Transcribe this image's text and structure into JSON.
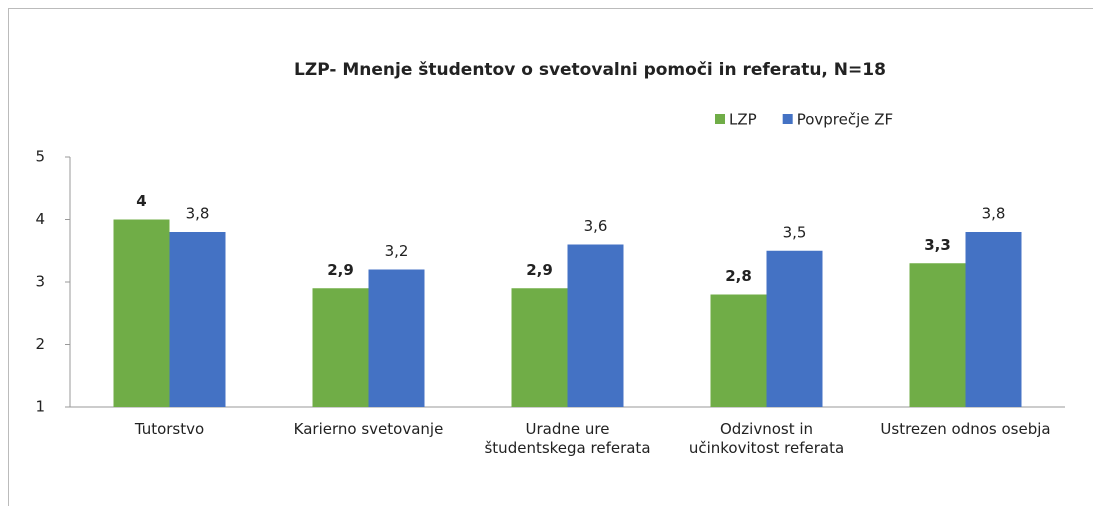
{
  "chart_data": {
    "type": "bar",
    "title": "LZP- Mnenje študentov o svetovalni pomoči in referatu, N=18",
    "categories": [
      "Tutorstvo",
      "Karierno svetovanje",
      "Uradne ure študentskega referata",
      "Odzivnost in učinkovitost referata",
      "Ustrezen odnos osebja"
    ],
    "series": [
      {
        "name": "LZP",
        "color": "#70ad47",
        "values": [
          4,
          2.9,
          2.9,
          2.8,
          3.3
        ],
        "value_labels": [
          "4",
          "2,9",
          "2,9",
          "2,8",
          "3,3"
        ]
      },
      {
        "name": "Povprečje ZF",
        "color": "#4472c4",
        "values": [
          3.8,
          3.2,
          3.6,
          3.5,
          3.8
        ],
        "value_labels": [
          "3,8",
          "3,2",
          "3,6",
          "3,5",
          "3,8"
        ]
      }
    ],
    "ylim": [
      1,
      5
    ],
    "yticks": [
      1,
      2,
      3,
      4,
      5
    ],
    "grid": false,
    "legend": "top-right"
  }
}
